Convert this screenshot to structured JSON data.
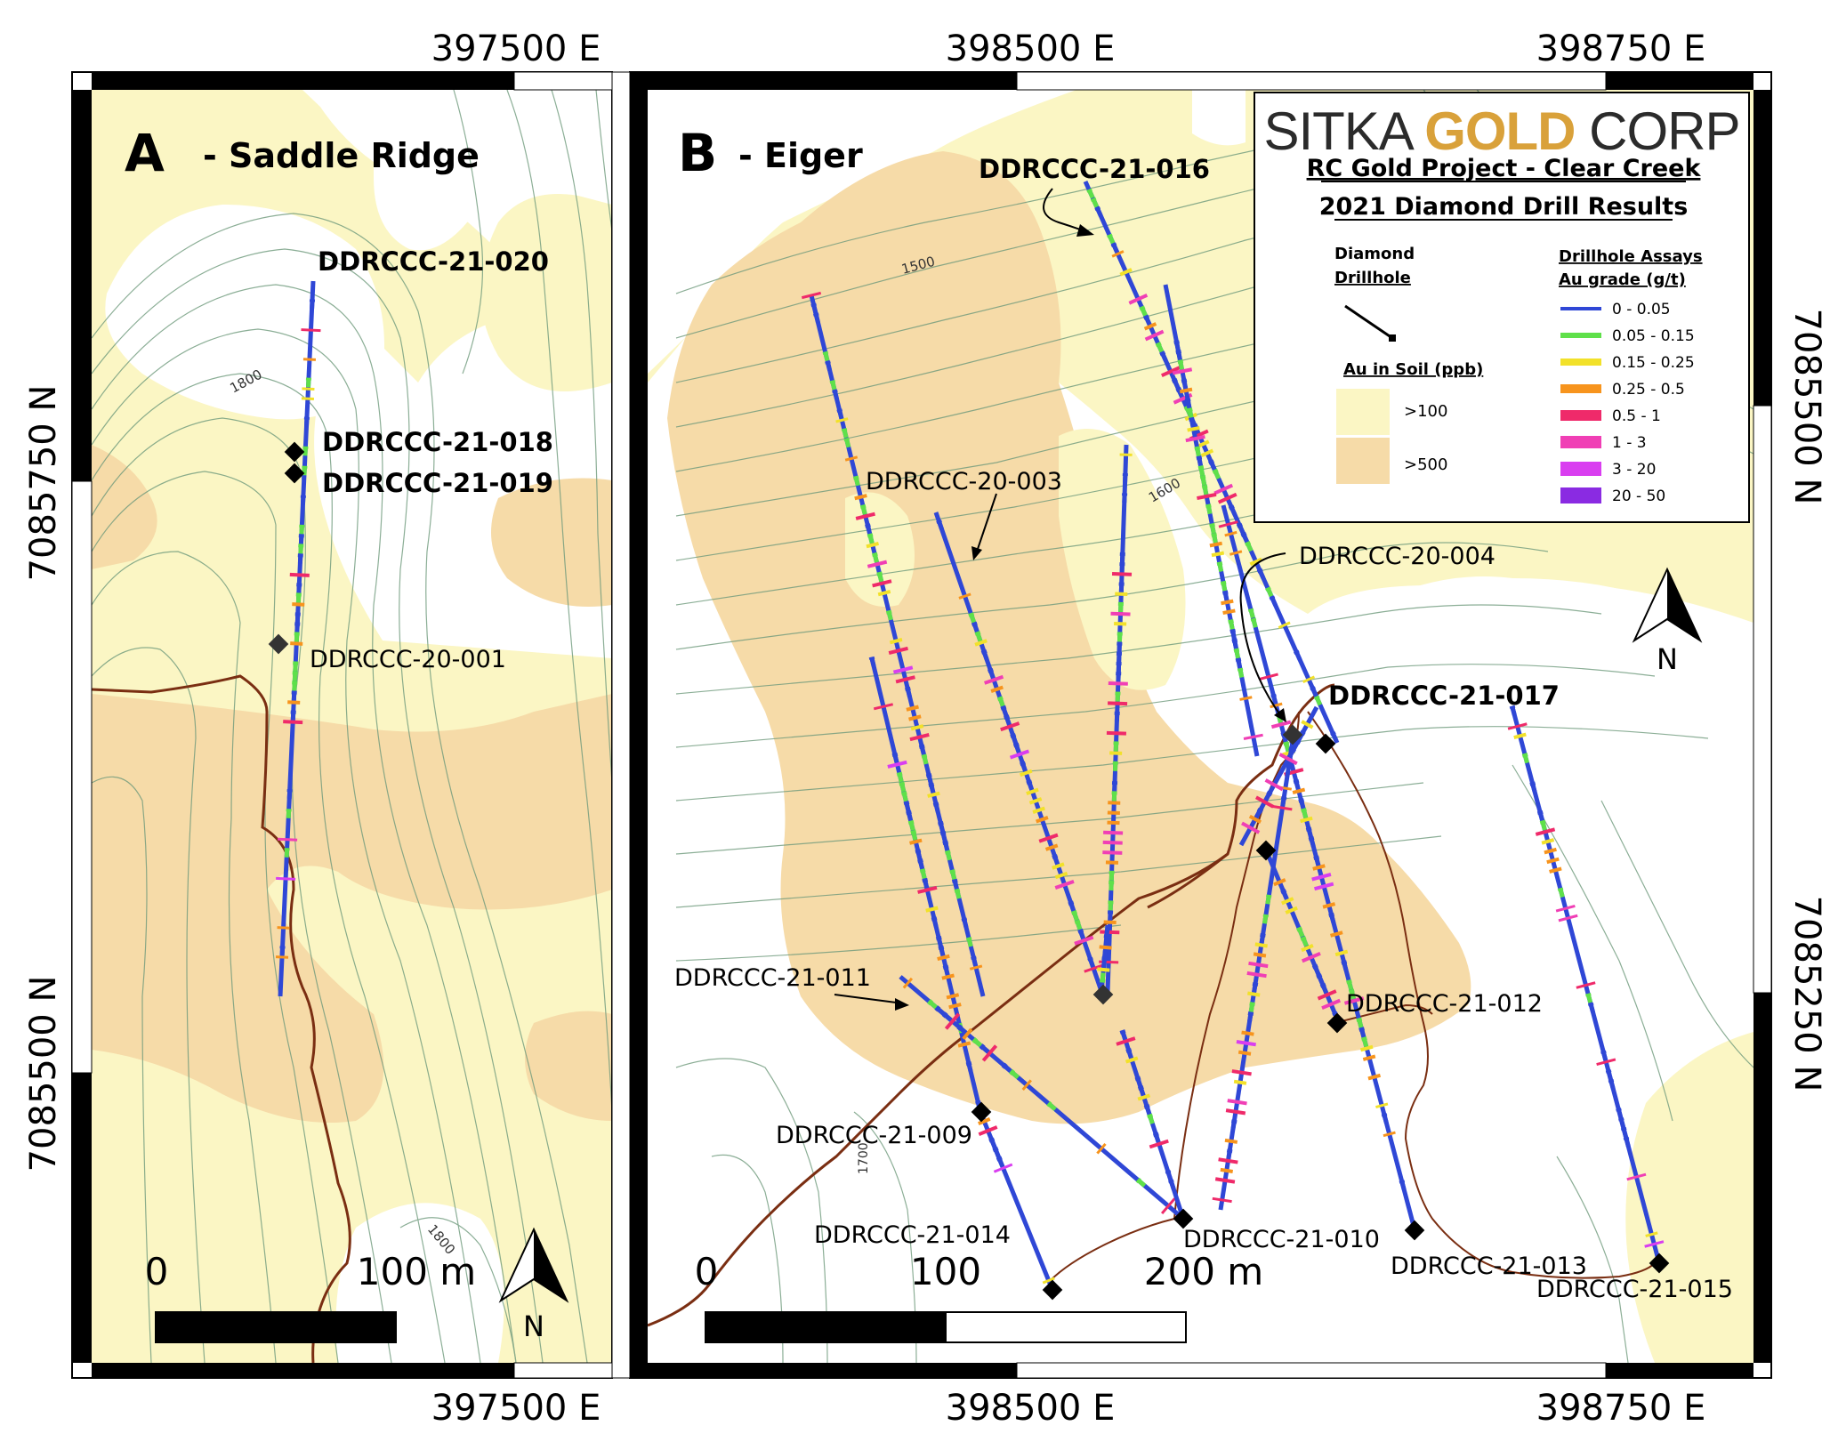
{
  "panel_a": {
    "letter": "A",
    "title": "- Saddle Ridge",
    "labels": {
      "hole_020": "DDRCCC-21-020",
      "hole_018": "DDRCCC-21-018",
      "hole_019": "DDRCCC-21-019",
      "hole_001": "DDRCCC-20-001"
    },
    "contours": {
      "c1": "1800",
      "c2": "1800"
    },
    "scalebar": {
      "zero": "0",
      "end": "100 m"
    },
    "north": "N"
  },
  "panel_b": {
    "letter": "B",
    "title": "- Eiger",
    "labels": {
      "hole_016": "DDRCCC-21-016",
      "hole_003": "DDRCCC-20-003",
      "hole_004": "DDRCCC-20-004",
      "hole_017": "DDRCCC-21-017",
      "hole_011": "DDRCCC-21-011",
      "hole_012": "DDRCCC-21-012",
      "hole_009": "DDRCCC-21-009",
      "hole_014": "DDRCCC-21-014",
      "hole_010": "DDRCCC-21-010",
      "hole_013": "DDRCCC-21-013",
      "hole_015": "DDRCCC-21-015"
    },
    "contours": {
      "c1500": "1500",
      "c1600": "1600",
      "c1700": "1700"
    },
    "scalebar": {
      "zero": "0",
      "mid": "100",
      "end": "200 m"
    },
    "north": "N"
  },
  "coords": {
    "top_a": "397500 E",
    "top_b1": "398500 E",
    "top_b2": "398750 E",
    "bottom_a": "397500 E",
    "bottom_b1": "398500 E",
    "bottom_b2": "398750 E",
    "left_1": "7085750 N",
    "left_2": "7085500 N",
    "right_1": "7085500 N",
    "right_2": "7085250 N"
  },
  "legend": {
    "company_left": "SITKA ",
    "company_gold": "GOLD",
    "company_right": " CORP",
    "title1": "RC Gold Project - Clear Creek",
    "title2": "2021 Diamond Drill Results",
    "drillhole_h1": "Diamond",
    "drillhole_h2": "Drillhole",
    "soil_heading": "Au in Soil (ppb)",
    "soil_items": [
      {
        "label": ">100",
        "color": "#fbf6c4"
      },
      {
        "label": ">500",
        "color": "#f6dba8"
      }
    ],
    "assay_h1": "Drillhole Assays",
    "assay_h2": "Au grade (g/t)",
    "assay_items": [
      {
        "label": "0 - 0.05",
        "color": "#2f47d6"
      },
      {
        "label": "0.05 - 0.15",
        "color": "#5fe04a"
      },
      {
        "label": "0.15 - 0.25",
        "color": "#f2e12a"
      },
      {
        "label": "0.25 - 0.5",
        "color": "#f7941d"
      },
      {
        "label": "0.5 - 1",
        "color": "#ef2a6a"
      },
      {
        "label": "1 - 3",
        "color": "#f03fb5"
      },
      {
        "label": "3 - 20",
        "color": "#d93ef0"
      },
      {
        "label": "20 - 50",
        "color": "#8a2be2"
      }
    ]
  },
  "colors": {
    "soil_low": "#fbf6c4",
    "soil_high": "#f6dba8",
    "contour": "#6f9a7c",
    "road": "#7a2e12",
    "hole": "#2f47d6",
    "gold": "#d9a13a"
  }
}
